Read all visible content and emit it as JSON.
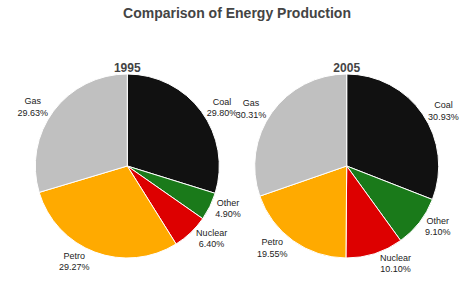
{
  "title": "Comparison of Energy Production",
  "chart_data": [
    {
      "type": "pie",
      "title": "1995",
      "categories": [
        "Coal",
        "Other",
        "Nuclear",
        "Petro",
        "Gas"
      ],
      "values": [
        29.8,
        4.9,
        6.4,
        29.27,
        29.63
      ],
      "value_labels": [
        "29.80%",
        "4.90%",
        "6.40%",
        "29.27%",
        "29.63%"
      ],
      "colors": [
        "#111111",
        "#1a7a1a",
        "#dd0000",
        "#ffaa00",
        "#c0c0c0"
      ],
      "data_labels": true
    },
    {
      "type": "pie",
      "title": "2005",
      "categories": [
        "Coal",
        "Other",
        "Nuclear",
        "Petro",
        "Gas"
      ],
      "values": [
        30.93,
        9.1,
        10.1,
        19.55,
        30.31
      ],
      "value_labels": [
        "30.93%",
        "9.10%",
        "10.10%",
        "19.55%",
        "30.31%"
      ],
      "colors": [
        "#111111",
        "#1a7a1a",
        "#dd0000",
        "#ffaa00",
        "#c0c0c0"
      ],
      "data_labels": true
    }
  ]
}
